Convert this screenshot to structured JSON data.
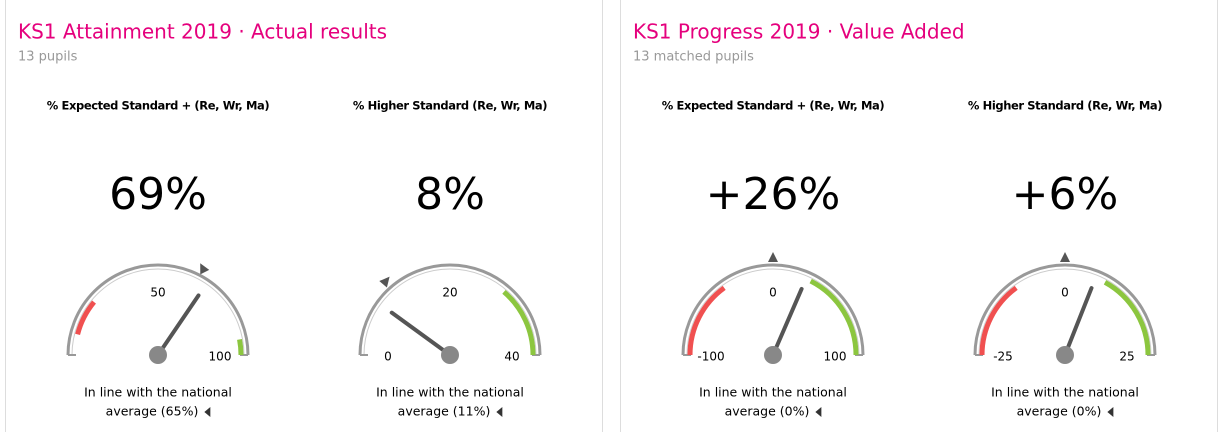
{
  "panels": [
    {
      "title": "KS1 Attainment 2019 · Actual results",
      "subtitle": "13 pupils",
      "gauges": [
        {
          "heading": "% Expected Standard + (Re, Wr, Ma)",
          "value": 69,
          "value_label": "69%",
          "min": 0,
          "max": 100,
          "ticks": [
            50,
            100
          ],
          "average": 65,
          "bands": [
            {
              "from": 8,
              "to": 22,
              "color": "#f05050"
            },
            {
              "from": 94,
              "to": 100,
              "color": "#8cc63f"
            }
          ],
          "note": [
            "In line with the national",
            "average (65%)"
          ]
        },
        {
          "heading": "% Higher Standard (Re, Wr, Ma)",
          "value": 8,
          "value_label": "8%",
          "min": 0,
          "max": 40,
          "ticks": [
            0,
            20,
            40
          ],
          "average": 11,
          "bands": [
            {
              "from": 29,
              "to": 40,
              "color": "#8cc63f"
            }
          ],
          "note": [
            "In line with the national",
            "average (11%)"
          ]
        }
      ]
    },
    {
      "title": "KS1 Progress 2019 · Value Added",
      "subtitle": "13 matched pupils",
      "gauges": [
        {
          "heading": "% Expected Standard + (Re, Wr, Ma)",
          "value": 26,
          "value_label": "+26%",
          "min": -100,
          "max": 100,
          "ticks": [
            -100,
            0,
            100
          ],
          "average": 0,
          "bands": [
            {
              "from": -100,
              "to": -40,
              "color": "#f05050"
            },
            {
              "from": 30,
              "to": 100,
              "color": "#8cc63f"
            }
          ],
          "note": [
            "In line with the national",
            "average (0%)"
          ]
        },
        {
          "heading": "% Higher Standard (Re, Wr, Ma)",
          "value": 6,
          "value_label": "+6%",
          "min": -25,
          "max": 25,
          "ticks": [
            -25,
            0,
            25
          ],
          "average": 0,
          "bands": [
            {
              "from": -25,
              "to": -10,
              "color": "#f05050"
            },
            {
              "from": 8,
              "to": 25,
              "color": "#8cc63f"
            }
          ],
          "note": [
            "In line with the national",
            "average (0%)"
          ]
        }
      ]
    }
  ]
}
